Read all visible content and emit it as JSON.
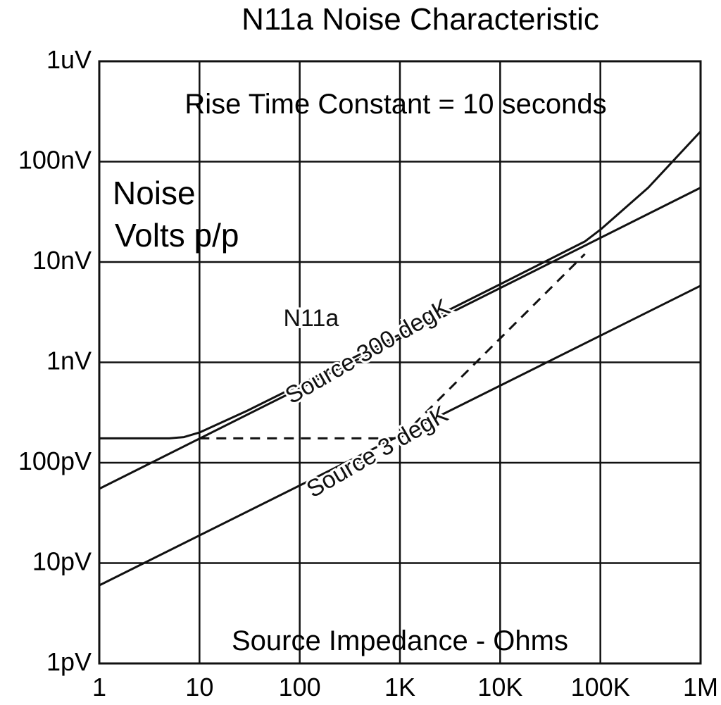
{
  "chart_data": {
    "type": "line",
    "title": "N11a Noise Characteristic",
    "annotation": "Rise Time Constant = 10 seconds",
    "ylabel": [
      "Noise",
      "Volts p/p"
    ],
    "xlabel": "Source Impedance - Ohms",
    "x_scale": "log",
    "y_scale": "log",
    "xlim": [
      1,
      1000000
    ],
    "ylim": [
      1e-12,
      1e-06
    ],
    "grid": true,
    "x_ticks": [
      {
        "value": 1,
        "label": "1"
      },
      {
        "value": 10,
        "label": "10"
      },
      {
        "value": 100,
        "label": "100"
      },
      {
        "value": 1000,
        "label": "1K"
      },
      {
        "value": 10000,
        "label": "10K"
      },
      {
        "value": 100000,
        "label": "100K"
      },
      {
        "value": 1000000,
        "label": "1M"
      }
    ],
    "y_ticks": [
      {
        "value": 1e-12,
        "label": "1pV"
      },
      {
        "value": 1e-11,
        "label": "10pV"
      },
      {
        "value": 1e-10,
        "label": "100pV"
      },
      {
        "value": 1e-09,
        "label": "1nV"
      },
      {
        "value": 1e-08,
        "label": "10nV"
      },
      {
        "value": 1e-07,
        "label": "100nV"
      },
      {
        "value": 1e-06,
        "label": "1uV"
      }
    ],
    "series": [
      {
        "name": "N11a",
        "style": "solid",
        "x": [
          1,
          5,
          7,
          10,
          30,
          100,
          1000,
          10000,
          70000,
          100000,
          300000,
          1000000
        ],
        "y": [
          1.75e-10,
          1.75e-10,
          1.8e-10,
          2e-10,
          3.3e-10,
          6e-10,
          1.9e-09,
          6e-09,
          1.6e-08,
          2.1e-08,
          5.5e-08,
          2e-07
        ]
      },
      {
        "name": "Source 300 degK",
        "style": "solid",
        "x": [
          1,
          1000000
        ],
        "y": [
          5.5e-11,
          5.5e-08
        ]
      },
      {
        "name": "Source 3 degK",
        "style": "solid",
        "x": [
          1,
          1000000
        ],
        "y": [
          6e-12,
          5.8e-09
        ]
      },
      {
        "name": "",
        "style": "dashed",
        "x": [
          10,
          1000,
          70000
        ],
        "y": [
          1.75e-10,
          1.75e-10,
          1.2e-08
        ]
      }
    ],
    "curve_labels": [
      {
        "text": "N11a",
        "x": 130,
        "y": 2.3e-09,
        "rotation": 0
      },
      {
        "text": "Source 300 degK",
        "x": 520,
        "y": 1.1e-09,
        "rotation": -30
      },
      {
        "text": "Source 3 degK",
        "x": 650,
        "y": 1.1e-10,
        "rotation": -30
      }
    ]
  }
}
